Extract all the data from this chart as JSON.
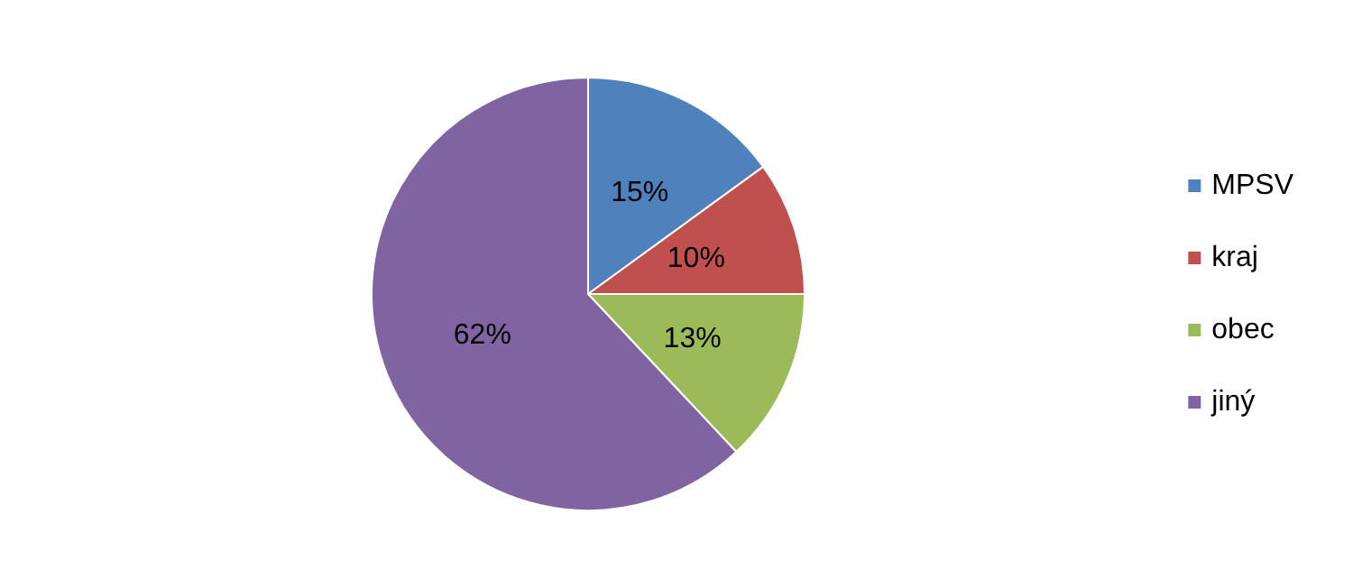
{
  "chart_data": {
    "type": "pie",
    "categories": [
      "MPSV",
      "kraj",
      "obec",
      "jiný"
    ],
    "values": [
      15,
      10,
      13,
      62
    ],
    "value_labels": [
      "15%",
      "10%",
      "13%",
      "62%"
    ],
    "colors": [
      "#4f81bd",
      "#c0504d",
      "#9bbb59",
      "#8064a2"
    ],
    "legend": "right"
  }
}
